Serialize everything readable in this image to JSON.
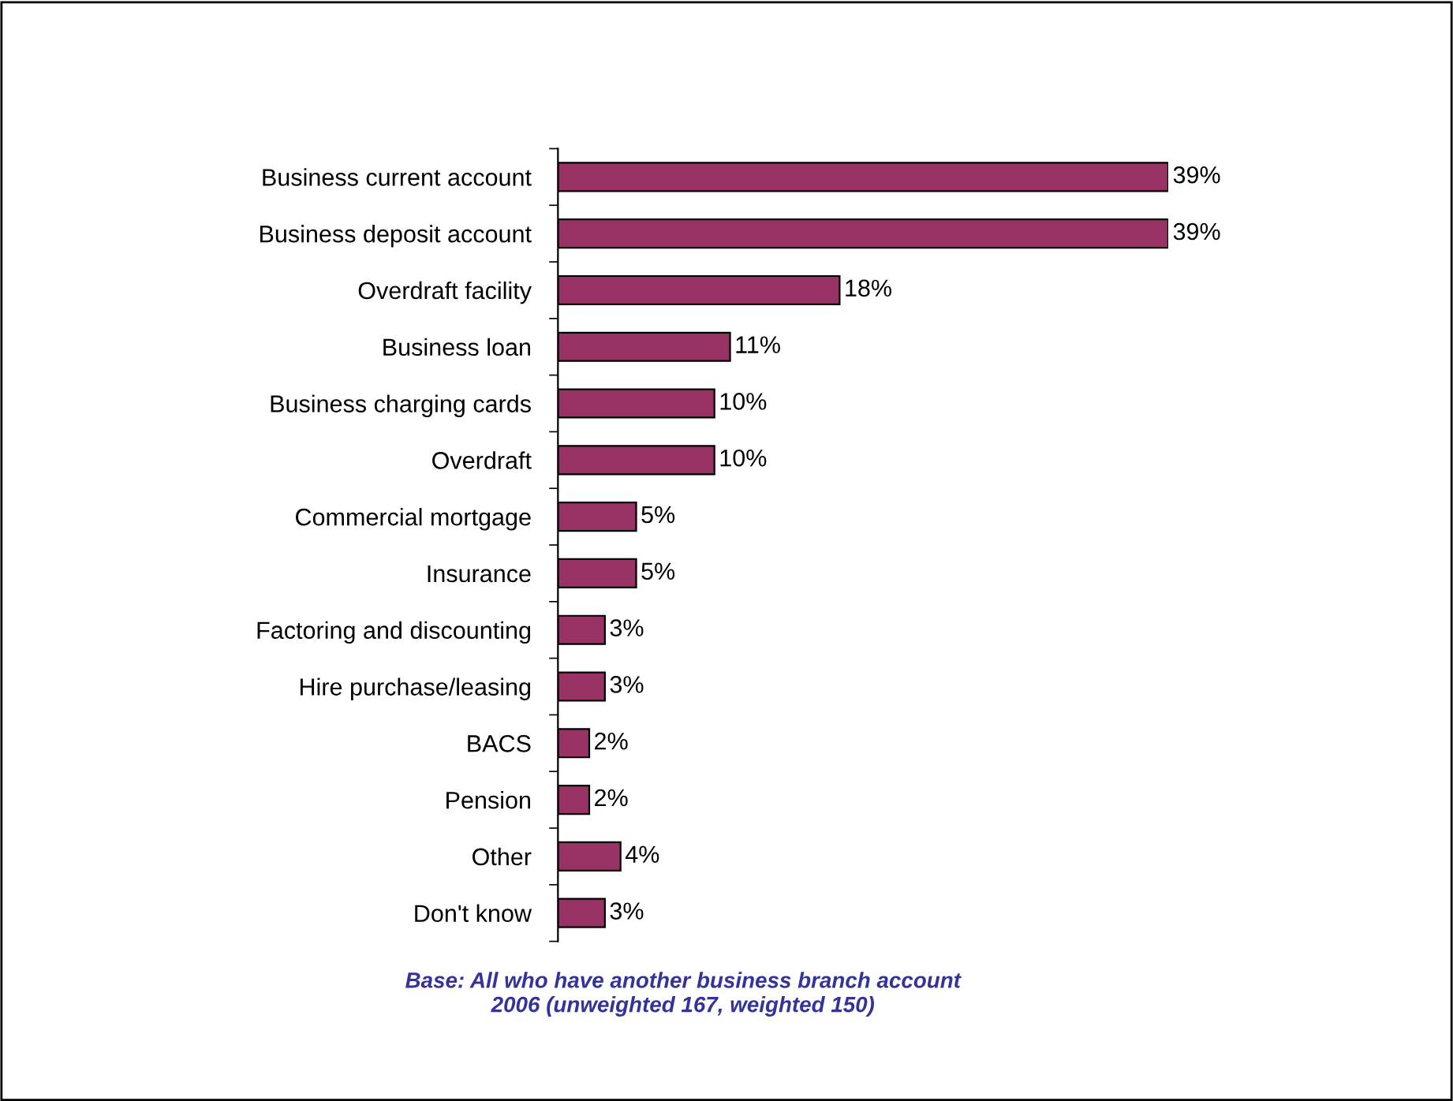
{
  "chart_data": {
    "type": "bar",
    "orientation": "horizontal",
    "categories": [
      "Business current account",
      "Business deposit account",
      "Overdraft facility",
      "Business loan",
      "Business charging cards",
      "Overdraft",
      "Commercial mortgage",
      "Insurance",
      "Factoring and discounting",
      "Hire purchase/leasing",
      "BACS",
      "Pension",
      "Other",
      "Don't know"
    ],
    "values": [
      39,
      39,
      18,
      11,
      10,
      10,
      5,
      5,
      3,
      3,
      2,
      2,
      4,
      3
    ],
    "value_labels": [
      "39%",
      "39%",
      "18%",
      "11%",
      "10%",
      "10%",
      "5%",
      "5%",
      "3%",
      "3%",
      "2%",
      "2%",
      "4%",
      "3%"
    ],
    "color": "#993366",
    "grid": false,
    "legend": false,
    "tick_labels": "y",
    "annotations": [
      "Base: All who have another business branch account",
      "2006 (unweighted 167, weighted 150)"
    ]
  }
}
